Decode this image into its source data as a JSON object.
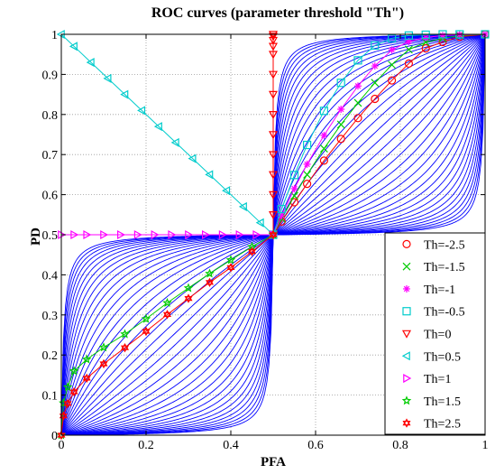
{
  "chart_data": {
    "type": "line",
    "title": "ROC curves (parameter threshold \"Th\")",
    "xlabel": "PFA",
    "ylabel": "PD",
    "xlim": [
      0,
      1
    ],
    "ylim": [
      0,
      1
    ],
    "xticks": [
      "0",
      "0.2",
      "0.4",
      "0.6",
      "0.8",
      "1"
    ],
    "yticks": [
      "0",
      "0.1",
      "0.2",
      "0.3",
      "0.4",
      "0.5",
      "0.6",
      "0.7",
      "0.8",
      "0.9",
      "1"
    ],
    "grid": true,
    "legend_position": "bottom-right",
    "background_curves": {
      "color": "#0000ff",
      "count": 40,
      "shape": "hyperbolic ROC family through (0,0), (0.5,0.5) and (1,1)"
    },
    "series": [
      {
        "name": "Th=-2.5",
        "marker": "circle",
        "color": "#ff0000",
        "s": 2.4,
        "points": [
          [
            0.5,
            0.5
          ],
          [
            0.52,
            0.533
          ],
          [
            0.55,
            0.581
          ],
          [
            0.58,
            0.627
          ],
          [
            0.62,
            0.685
          ],
          [
            0.66,
            0.739
          ],
          [
            0.7,
            0.791
          ],
          [
            0.74,
            0.839
          ],
          [
            0.78,
            0.885
          ],
          [
            0.82,
            0.927
          ],
          [
            0.86,
            0.965
          ],
          [
            0.9,
            0.981
          ],
          [
            0.94,
            0.994
          ],
          [
            1,
            1
          ]
        ]
      },
      {
        "name": "Th=-1.5",
        "marker": "x",
        "color": "#00cc00",
        "s": 2.0,
        "points": [
          [
            0.5,
            0.5
          ],
          [
            0.52,
            0.54
          ],
          [
            0.55,
            0.597
          ],
          [
            0.58,
            0.65
          ],
          [
            0.62,
            0.715
          ],
          [
            0.66,
            0.775
          ],
          [
            0.7,
            0.829
          ],
          [
            0.74,
            0.879
          ],
          [
            0.78,
            0.924
          ],
          [
            0.82,
            0.962
          ],
          [
            0.86,
            0.98
          ],
          [
            0.9,
            0.99
          ],
          [
            0.94,
            0.997
          ],
          [
            1,
            1
          ]
        ]
      },
      {
        "name": "Th=-1",
        "marker": "asterisk",
        "color": "#ff00ff",
        "s": 1.6,
        "points": [
          [
            0.5,
            0.5
          ],
          [
            0.52,
            0.548
          ],
          [
            0.55,
            0.615
          ],
          [
            0.58,
            0.676
          ],
          [
            0.62,
            0.748
          ],
          [
            0.66,
            0.813
          ],
          [
            0.7,
            0.871
          ],
          [
            0.74,
            0.921
          ],
          [
            0.78,
            0.961
          ],
          [
            0.82,
            0.982
          ],
          [
            0.86,
            0.992
          ],
          [
            0.9,
            0.997
          ],
          [
            0.94,
            0.999
          ],
          [
            1,
            1
          ]
        ]
      },
      {
        "name": "Th=-0.5",
        "marker": "square",
        "color": "#00cccc",
        "s": 1.1,
        "points": [
          [
            0.5,
            0.5
          ],
          [
            0.52,
            0.564
          ],
          [
            0.55,
            0.649
          ],
          [
            0.58,
            0.724
          ],
          [
            0.62,
            0.809
          ],
          [
            0.66,
            0.879
          ],
          [
            0.7,
            0.935
          ],
          [
            0.74,
            0.972
          ],
          [
            0.78,
            0.99
          ],
          [
            0.82,
            0.997
          ],
          [
            0.86,
            0.999
          ],
          [
            0.9,
            1.0
          ],
          [
            0.94,
            1.0
          ],
          [
            1,
            1
          ]
        ]
      },
      {
        "name": "Th=0",
        "marker": "triangle-down",
        "color": "#ff0000",
        "s": 0,
        "points": [
          [
            0.5,
            0.5
          ],
          [
            0.5,
            0.55
          ],
          [
            0.5,
            0.6
          ],
          [
            0.5,
            0.65
          ],
          [
            0.5,
            0.7
          ],
          [
            0.5,
            0.75
          ],
          [
            0.5,
            0.8
          ],
          [
            0.5,
            0.85
          ],
          [
            0.5,
            0.9
          ],
          [
            0.5,
            0.95
          ],
          [
            0.5,
            0.97
          ],
          [
            0.5,
            0.985
          ],
          [
            0.5,
            0.995
          ],
          [
            0.5,
            1
          ]
        ]
      },
      {
        "name": "Th=0.5",
        "marker": "triangle-left",
        "color": "#00cccc",
        "s": -1.0,
        "points": [
          [
            0.5,
            0.5
          ],
          [
            0.47,
            0.53
          ],
          [
            0.43,
            0.57
          ],
          [
            0.39,
            0.61
          ],
          [
            0.35,
            0.65
          ],
          [
            0.31,
            0.69
          ],
          [
            0.27,
            0.73
          ],
          [
            0.23,
            0.77
          ],
          [
            0.19,
            0.81
          ],
          [
            0.15,
            0.85
          ],
          [
            0.11,
            0.89
          ],
          [
            0.07,
            0.93
          ],
          [
            0.03,
            0.97
          ],
          [
            0,
            1
          ]
        ]
      },
      {
        "name": "Th=1",
        "marker": "triangle-right",
        "color": "#ff00ff",
        "s": 0,
        "points": [
          [
            0.5,
            0.5
          ],
          [
            0.46,
            0.5
          ],
          [
            0.42,
            0.5
          ],
          [
            0.38,
            0.5
          ],
          [
            0.34,
            0.5
          ],
          [
            0.3,
            0.5
          ],
          [
            0.26,
            0.5
          ],
          [
            0.22,
            0.5
          ],
          [
            0.18,
            0.5
          ],
          [
            0.14,
            0.5
          ],
          [
            0.1,
            0.5
          ],
          [
            0.06,
            0.5
          ],
          [
            0.03,
            0.5
          ],
          [
            0,
            0.5
          ]
        ]
      },
      {
        "name": "Th=1.5",
        "marker": "star5",
        "color": "#00cc00",
        "s": -1.1,
        "points": [
          [
            0.5,
            0.5
          ],
          [
            0.45,
            0.47
          ],
          [
            0.4,
            0.437
          ],
          [
            0.35,
            0.403
          ],
          [
            0.3,
            0.367
          ],
          [
            0.25,
            0.33
          ],
          [
            0.2,
            0.29
          ],
          [
            0.15,
            0.252
          ],
          [
            0.1,
            0.219
          ],
          [
            0.06,
            0.189
          ],
          [
            0.03,
            0.16
          ],
          [
            0.015,
            0.12
          ],
          [
            0.005,
            0.08
          ],
          [
            0,
            0
          ]
        ]
      },
      {
        "name": "Th=2.5",
        "marker": "star6",
        "color": "#ff0000",
        "s": -1.8,
        "points": [
          [
            0.5,
            0.5
          ],
          [
            0.45,
            0.458
          ],
          [
            0.4,
            0.418
          ],
          [
            0.35,
            0.381
          ],
          [
            0.3,
            0.341
          ],
          [
            0.25,
            0.301
          ],
          [
            0.2,
            0.259
          ],
          [
            0.15,
            0.218
          ],
          [
            0.1,
            0.178
          ],
          [
            0.06,
            0.142
          ],
          [
            0.03,
            0.108
          ],
          [
            0.015,
            0.079
          ],
          [
            0.005,
            0.048
          ],
          [
            0,
            0
          ]
        ]
      }
    ]
  }
}
